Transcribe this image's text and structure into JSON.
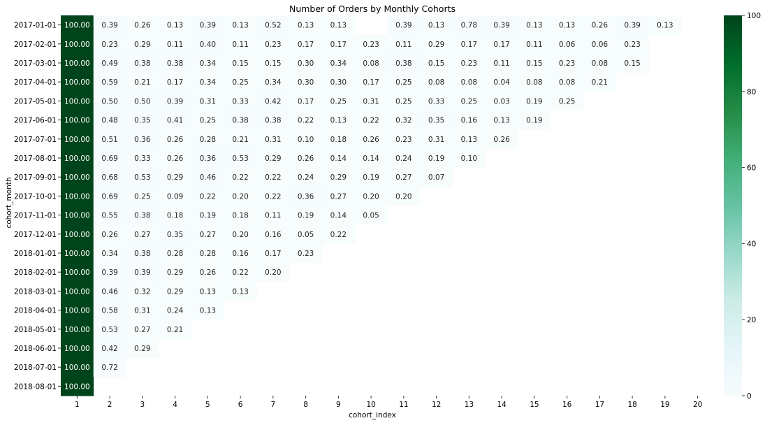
{
  "chart_data": {
    "type": "heatmap",
    "title": "Number of Orders by Monthly Cohorts",
    "xlabel": "cohort_index",
    "ylabel": "cohort_month",
    "x_categories": [
      "1",
      "2",
      "3",
      "4",
      "5",
      "6",
      "7",
      "8",
      "9",
      "10",
      "11",
      "12",
      "13",
      "14",
      "15",
      "16",
      "17",
      "18",
      "19",
      "20"
    ],
    "y_categories": [
      "2017-01-01",
      "2017-02-01",
      "2017-03-01",
      "2017-04-01",
      "2017-05-01",
      "2017-06-01",
      "2017-07-01",
      "2017-08-01",
      "2017-09-01",
      "2017-10-01",
      "2017-11-01",
      "2017-12-01",
      "2018-01-01",
      "2018-02-01",
      "2018-03-01",
      "2018-04-01",
      "2018-05-01",
      "2018-06-01",
      "2018-07-01",
      "2018-08-01"
    ],
    "values": [
      [
        100.0,
        0.39,
        0.26,
        0.13,
        0.39,
        0.13,
        0.52,
        0.13,
        0.13,
        null,
        0.39,
        0.13,
        0.78,
        0.39,
        0.13,
        0.13,
        0.26,
        0.39,
        0.13
      ],
      [
        100.0,
        0.23,
        0.29,
        0.11,
        0.4,
        0.11,
        0.23,
        0.17,
        0.17,
        0.23,
        0.11,
        0.29,
        0.17,
        0.17,
        0.11,
        0.06,
        0.06,
        0.23
      ],
      [
        100.0,
        0.49,
        0.38,
        0.38,
        0.34,
        0.15,
        0.15,
        0.3,
        0.34,
        0.08,
        0.38,
        0.15,
        0.23,
        0.11,
        0.15,
        0.23,
        0.08,
        0.15
      ],
      [
        100.0,
        0.59,
        0.21,
        0.17,
        0.34,
        0.25,
        0.34,
        0.3,
        0.3,
        0.17,
        0.25,
        0.08,
        0.08,
        0.04,
        0.08,
        0.08,
        0.21
      ],
      [
        100.0,
        0.5,
        0.5,
        0.39,
        0.31,
        0.33,
        0.42,
        0.17,
        0.25,
        0.31,
        0.25,
        0.33,
        0.25,
        0.03,
        0.19,
        0.25
      ],
      [
        100.0,
        0.48,
        0.35,
        0.41,
        0.25,
        0.38,
        0.38,
        0.22,
        0.13,
        0.22,
        0.32,
        0.35,
        0.16,
        0.13,
        0.19
      ],
      [
        100.0,
        0.51,
        0.36,
        0.26,
        0.28,
        0.21,
        0.31,
        0.1,
        0.18,
        0.26,
        0.23,
        0.31,
        0.13,
        0.26
      ],
      [
        100.0,
        0.69,
        0.33,
        0.26,
        0.36,
        0.53,
        0.29,
        0.26,
        0.14,
        0.14,
        0.24,
        0.19,
        0.1
      ],
      [
        100.0,
        0.68,
        0.53,
        0.29,
        0.46,
        0.22,
        0.22,
        0.24,
        0.29,
        0.19,
        0.27,
        0.07
      ],
      [
        100.0,
        0.69,
        0.25,
        0.09,
        0.22,
        0.2,
        0.22,
        0.36,
        0.27,
        0.2,
        0.2
      ],
      [
        100.0,
        0.55,
        0.38,
        0.18,
        0.19,
        0.18,
        0.11,
        0.19,
        0.14,
        0.05
      ],
      [
        100.0,
        0.26,
        0.27,
        0.35,
        0.27,
        0.2,
        0.16,
        0.05,
        0.22
      ],
      [
        100.0,
        0.34,
        0.38,
        0.28,
        0.28,
        0.16,
        0.17,
        0.23
      ],
      [
        100.0,
        0.39,
        0.39,
        0.29,
        0.26,
        0.22,
        0.2
      ],
      [
        100.0,
        0.46,
        0.32,
        0.29,
        0.13,
        0.13
      ],
      [
        100.0,
        0.58,
        0.31,
        0.24,
        0.13
      ],
      [
        100.0,
        0.53,
        0.27,
        0.21
      ],
      [
        100.0,
        0.42,
        0.29
      ],
      [
        100.0,
        0.72
      ],
      [
        100.0
      ]
    ],
    "colorbar": {
      "min": 0,
      "max": 100,
      "ticks": [
        "0",
        "20",
        "40",
        "60",
        "80",
        "100"
      ],
      "colormap": "BuGn",
      "stops": [
        "#f7fcfd",
        "#e5f5f9",
        "#ccece6",
        "#99d8c9",
        "#66c2a4",
        "#41ae76",
        "#238b45",
        "#006d2c",
        "#00441b"
      ]
    },
    "cell_label_format": "2 decimals",
    "grid": false,
    "legend": "colorbar-right"
  }
}
